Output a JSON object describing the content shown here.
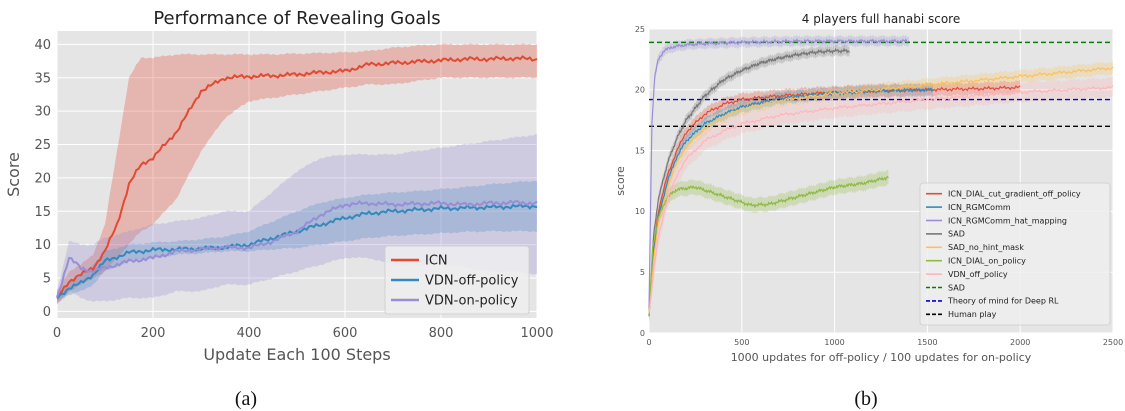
{
  "captions": {
    "a": "(a)",
    "b": "(b)"
  },
  "chart_data": [
    {
      "type": "line",
      "title": "Performance of Revealing Goals",
      "xlabel": "Update Each 100 Steps",
      "ylabel": "Score",
      "xlim": [
        0,
        1000
      ],
      "ylim": [
        -1,
        42
      ],
      "xticks": [
        0,
        200,
        400,
        600,
        800,
        1000
      ],
      "yticks": [
        0,
        5,
        10,
        15,
        20,
        25,
        30,
        35,
        40
      ],
      "grid": true,
      "background": "#e5e5e5",
      "legend_position": "lower-right",
      "series": [
        {
          "name": "ICN",
          "color": "#e24a33",
          "x": [
            0,
            25,
            50,
            75,
            100,
            125,
            150,
            175,
            200,
            250,
            300,
            350,
            400,
            450,
            500,
            550,
            600,
            650,
            700,
            750,
            800,
            850,
            900,
            950,
            1000
          ],
          "y": [
            2,
            4.5,
            5.5,
            6.5,
            9,
            13,
            19,
            22,
            23,
            27,
            33,
            35,
            35.2,
            35.3,
            35.5,
            35.8,
            36,
            37,
            37.2,
            37.4,
            37.6,
            37.8,
            37.8,
            37.9,
            37.8
          ],
          "lower": [
            1,
            3,
            4,
            5,
            6,
            8,
            10,
            12,
            13,
            17,
            24,
            29,
            31.5,
            32,
            32.5,
            33,
            33.5,
            34,
            34,
            34.5,
            35,
            35,
            35,
            35,
            35
          ],
          "upper": [
            3,
            6,
            7,
            8.5,
            13,
            24,
            35,
            38,
            38,
            38.5,
            38.5,
            38.5,
            38.5,
            38.5,
            38.6,
            38.7,
            38.8,
            39,
            39.5,
            39.8,
            40,
            40,
            40,
            40,
            40
          ]
        },
        {
          "name": "VDN-off-policy",
          "color": "#348abd",
          "x": [
            0,
            25,
            50,
            75,
            100,
            150,
            200,
            250,
            300,
            350,
            400,
            450,
            500,
            550,
            600,
            650,
            700,
            750,
            800,
            850,
            900,
            950,
            1000
          ],
          "y": [
            2,
            3.5,
            4.2,
            5.5,
            7.5,
            8.8,
            9.2,
            9.3,
            9.4,
            9.6,
            10,
            11,
            12,
            13,
            14,
            14.7,
            15,
            15.2,
            15.4,
            15.5,
            15.6,
            15.7,
            15.8
          ],
          "lower": [
            1.5,
            2.5,
            3,
            4,
            6,
            7.5,
            8,
            8.5,
            8.7,
            9,
            9,
            9.3,
            9.5,
            10,
            10.5,
            11,
            11.3,
            11.5,
            11.7,
            11.9,
            12,
            12,
            12
          ],
          "upper": [
            2.5,
            4.5,
            5.5,
            7,
            9,
            10,
            10.3,
            10.5,
            10.8,
            11.2,
            12,
            13.5,
            15,
            16.3,
            17,
            17.5,
            17.8,
            18,
            18.3,
            18.6,
            19,
            19.3,
            19.6
          ]
        },
        {
          "name": "VDN-on-policy",
          "color": "#988ed5",
          "x": [
            0,
            25,
            50,
            75,
            100,
            150,
            200,
            250,
            300,
            350,
            400,
            450,
            500,
            550,
            600,
            650,
            700,
            750,
            800,
            850,
            900,
            950,
            1000
          ],
          "y": [
            2,
            8,
            6.5,
            6,
            6.5,
            7.5,
            8,
            9,
            9.3,
            9.6,
            9.5,
            10.5,
            12,
            14.5,
            16,
            16.2,
            16,
            16.1,
            16.2,
            16,
            16.2,
            16.3,
            16.2
          ],
          "lower": [
            1,
            3,
            2,
            1.5,
            1.5,
            2,
            2,
            3,
            3,
            4,
            4,
            5,
            6,
            7,
            8,
            8,
            7,
            7,
            7,
            6.5,
            6,
            6,
            5.5
          ],
          "upper": [
            3,
            10.5,
            10,
            10,
            11,
            12,
            13,
            13.5,
            14,
            15,
            15,
            18,
            21,
            23,
            23.5,
            23.5,
            23.5,
            24,
            24.5,
            25,
            25.5,
            26,
            26.5
          ]
        }
      ]
    },
    {
      "type": "line",
      "title": "4 players full hanabi score",
      "xlabel": "1000 updates for off-policy / 100 updates for on-policy",
      "ylabel": "score",
      "xlim": [
        0,
        2500
      ],
      "ylim": [
        0,
        25
      ],
      "xticks": [
        0,
        500,
        1000,
        1500,
        2000,
        2500
      ],
      "yticks": [
        0,
        5,
        10,
        15,
        20,
        25
      ],
      "grid": true,
      "background": "#e5e5e5",
      "legend_position": "center-right",
      "series": [
        {
          "name": "ICN_DIAL_cut_gradient_off_policy",
          "color": "#e24a33",
          "x": [
            0,
            25,
            50,
            100,
            150,
            200,
            300,
            400,
            500,
            700,
            900,
            1200,
            1500,
            1800,
            2000
          ],
          "y": [
            1.5,
            7,
            10,
            13,
            15,
            16.5,
            18,
            18.8,
            19.2,
            19.5,
            19.7,
            19.9,
            20,
            20.1,
            20.2
          ],
          "band": 0.5
        },
        {
          "name": "ICN_RGMComm",
          "color": "#348abd",
          "x": [
            0,
            25,
            50,
            100,
            150,
            200,
            300,
            400,
            500,
            700,
            900,
            1200,
            1530
          ],
          "y": [
            1.5,
            6.5,
            9.5,
            12.5,
            14.5,
            15.8,
            17.2,
            18,
            18.6,
            19.3,
            19.6,
            19.9,
            20
          ],
          "band": 0.5
        },
        {
          "name": "ICN_RGMComm_hat_mapping",
          "color": "#988ed5",
          "x": [
            0,
            15,
            30,
            50,
            80,
            120,
            200,
            300,
            500,
            800,
            1100,
            1400
          ],
          "y": [
            2,
            17,
            21,
            22.5,
            23.2,
            23.5,
            23.7,
            23.8,
            23.9,
            24,
            24,
            24
          ],
          "band": 0.4
        },
        {
          "name": "SAD",
          "color": "#777777",
          "x": [
            0,
            25,
            50,
            100,
            150,
            200,
            300,
            400,
            500,
            600,
            700,
            800,
            900,
            1000,
            1080
          ],
          "y": [
            1.5,
            8,
            11,
            14,
            16,
            17.5,
            19.5,
            20.8,
            21.6,
            22.2,
            22.6,
            22.9,
            23.1,
            23.2,
            23.2
          ],
          "band": 0.4
        },
        {
          "name": "SAD_no_hint_mask",
          "color": "#fbc15e",
          "x": [
            0,
            25,
            50,
            100,
            150,
            200,
            300,
            400,
            500,
            700,
            1000,
            1500,
            2000,
            2500
          ],
          "y": [
            1.5,
            6,
            9,
            12,
            14,
            15.3,
            16.8,
            17.8,
            18.4,
            19.1,
            19.7,
            20.4,
            21.1,
            21.8
          ],
          "band": 0.5
        },
        {
          "name": "ICN_DIAL_on_policy",
          "color": "#8eba42",
          "x": [
            0,
            20,
            50,
            100,
            150,
            250,
            350,
            450,
            550,
            650,
            800,
            1000,
            1150,
            1290
          ],
          "y": [
            1.5,
            7,
            9.5,
            11.2,
            11.8,
            12,
            11.5,
            11,
            10.5,
            10.6,
            11.2,
            12,
            12.3,
            12.8
          ],
          "band": 0.6
        },
        {
          "name": "VDN_off_policy",
          "color": "#ffb5b8",
          "x": [
            0,
            25,
            50,
            100,
            150,
            200,
            300,
            400,
            500,
            700,
            1000,
            1500,
            2000,
            2500
          ],
          "y": [
            1.5,
            5,
            8,
            11,
            13,
            14.3,
            15.8,
            16.6,
            17.2,
            17.9,
            18.5,
            19.2,
            19.8,
            20.2
          ],
          "band": 0.8
        }
      ],
      "reference_lines": [
        {
          "name": "SAD",
          "y": 23.9,
          "color": "#008000"
        },
        {
          "name": "Theory of mind for Deep RL",
          "y": 19.2,
          "color": "#0000cc"
        },
        {
          "name": "Human play",
          "y": 17,
          "color": "#000000"
        }
      ]
    }
  ]
}
